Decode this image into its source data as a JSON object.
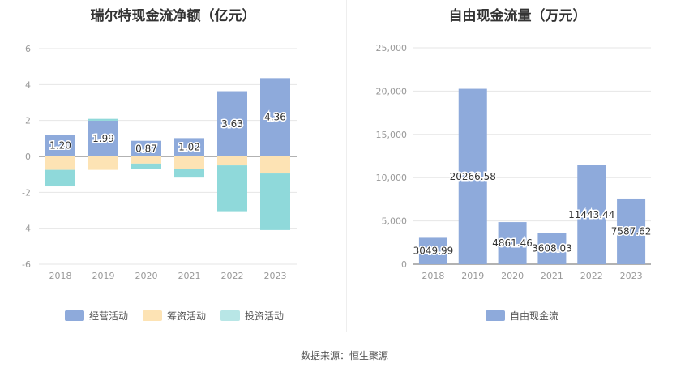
{
  "left_chart": {
    "title": "瑞尔特现金流净额（亿元）",
    "legend": [
      {
        "label": "经营活动",
        "color": "#8eaadb"
      },
      {
        "label": "筹资活动",
        "color": "#fde3b4"
      },
      {
        "label": "投资活动",
        "color": "#b8e6e6"
      }
    ]
  },
  "right_chart": {
    "title": "自由现金流量（万元）",
    "legend": [
      {
        "label": "自由现金流",
        "color": "#8eaadb"
      }
    ]
  },
  "source": "数据来源：恒生聚源",
  "chart_data": [
    {
      "type": "bar",
      "stacked": true,
      "title": "瑞尔特现金流净额（亿元）",
      "categories": [
        "2018",
        "2019",
        "2020",
        "2021",
        "2022",
        "2023"
      ],
      "ylim": [
        -6,
        6
      ],
      "yticks": [
        -6,
        -4,
        -2,
        0,
        2,
        4,
        6
      ],
      "grid": true,
      "legend_position": "bottom",
      "series": [
        {
          "name": "经营活动",
          "color": "#8eaadb",
          "values": [
            1.2,
            1.99,
            0.87,
            1.02,
            3.63,
            4.36
          ],
          "labeled": true
        },
        {
          "name": "筹资活动",
          "color": "#fde3b4",
          "values": [
            -0.75,
            -0.75,
            -0.4,
            -0.68,
            -0.5,
            -0.95
          ]
        },
        {
          "name": "投资活动",
          "color": "#8fd9da",
          "values": [
            -0.92,
            0.1,
            -0.32,
            -0.5,
            -2.55,
            -3.15
          ]
        }
      ]
    },
    {
      "type": "bar",
      "title": "自由现金流量（万元）",
      "categories": [
        "2018",
        "2019",
        "2020",
        "2021",
        "2022",
        "2023"
      ],
      "ylim": [
        0,
        25000
      ],
      "yticks": [
        0,
        5000,
        10000,
        15000,
        20000,
        25000
      ],
      "grid": true,
      "legend_position": "bottom",
      "series": [
        {
          "name": "自由现金流",
          "color": "#8eaadb",
          "values": [
            3049.99,
            20266.58,
            4861.46,
            3608.03,
            11443.44,
            7587.62
          ],
          "labeled": true
        }
      ]
    }
  ]
}
